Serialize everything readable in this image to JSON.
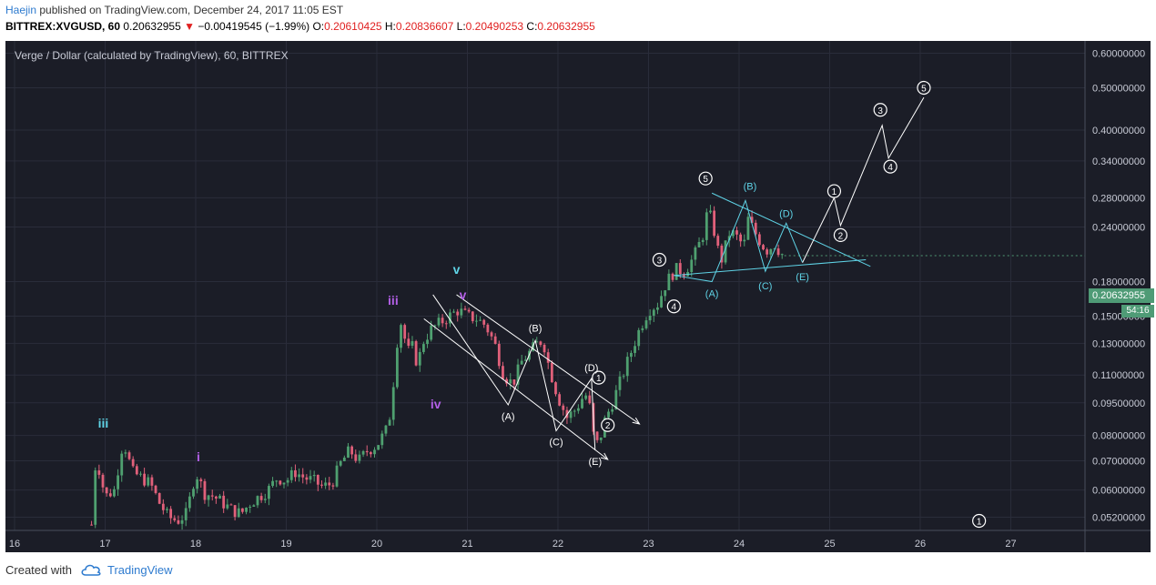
{
  "header": {
    "author": "Haejin",
    "published": " published on TradingView.com, December 24, 2017 11:05 EST",
    "symbol": "BITTREX:XVGUSD, 60",
    "last": "0.20632955",
    "change_arrow": "▼",
    "change": "−0.00419545 (−1.99%)",
    "o_label": "O:",
    "o_value": "0.20610425",
    "h_label": "H:",
    "h_value": "0.20836607",
    "l_label": "L:",
    "l_value": "0.20490253",
    "c_label": "C:",
    "c_value": "0.20632955"
  },
  "colors": {
    "background": "#1b1d27",
    "up_candle": "#4fa070",
    "down_candle": "#e0607a",
    "cyan": "#5fd3e6",
    "purple": "#b25fe6",
    "white": "#ffffff",
    "price_badge": "#4f9b76",
    "brand": "#2e7bcf"
  },
  "footer": {
    "created_with": "Created with",
    "brand": "TradingView",
    "logo_icon": "cloud-logo-icon"
  },
  "chart_data": {
    "type": "candlestick",
    "title": "Verge / Dollar (calculated by TradingView), 60, BITTREX",
    "price_scale": "log",
    "x_ticks": [
      "16",
      "17",
      "18",
      "19",
      "20",
      "21",
      "22",
      "23",
      "24",
      "25",
      "26",
      "27"
    ],
    "x_range": [
      16,
      27.92
    ],
    "y_ticks": [
      "0.60000000",
      "0.50000000",
      "0.40000000",
      "0.34000000",
      "0.28000000",
      "0.24000000",
      "0.18000000",
      "0.15000000",
      "0.13000000",
      "0.11000000",
      "0.09500000",
      "0.08000000",
      "0.07000000",
      "0.06000000",
      "0.05200000"
    ],
    "y_range": [
      0.0485,
      0.64
    ],
    "last_price": "0.20632955",
    "bar_countdown": "54:16",
    "price_path": [
      [
        16.85,
        0.05
      ],
      [
        16.9,
        0.072
      ],
      [
        17.0,
        0.058
      ],
      [
        17.1,
        0.06
      ],
      [
        17.2,
        0.078
      ],
      [
        17.3,
        0.066
      ],
      [
        17.4,
        0.064
      ],
      [
        17.5,
        0.062
      ],
      [
        17.6,
        0.056
      ],
      [
        17.7,
        0.052
      ],
      [
        17.8,
        0.051
      ],
      [
        17.9,
        0.053
      ],
      [
        18.0,
        0.066
      ],
      [
        18.1,
        0.059
      ],
      [
        18.2,
        0.058
      ],
      [
        18.3,
        0.056
      ],
      [
        18.4,
        0.054
      ],
      [
        18.5,
        0.053
      ],
      [
        18.6,
        0.056
      ],
      [
        18.7,
        0.058
      ],
      [
        18.8,
        0.06
      ],
      [
        18.9,
        0.064
      ],
      [
        19.0,
        0.063
      ],
      [
        19.1,
        0.066
      ],
      [
        19.2,
        0.064
      ],
      [
        19.3,
        0.063
      ],
      [
        19.4,
        0.061
      ],
      [
        19.5,
        0.062
      ],
      [
        19.6,
        0.069
      ],
      [
        19.7,
        0.074
      ],
      [
        19.8,
        0.07
      ],
      [
        19.9,
        0.074
      ],
      [
        20.0,
        0.076
      ],
      [
        20.1,
        0.082
      ],
      [
        20.15,
        0.09
      ],
      [
        20.2,
        0.115
      ],
      [
        20.25,
        0.15
      ],
      [
        20.3,
        0.135
      ],
      [
        20.35,
        0.125
      ],
      [
        20.4,
        0.128
      ],
      [
        20.45,
        0.115
      ],
      [
        20.5,
        0.13
      ],
      [
        20.6,
        0.14
      ],
      [
        20.7,
        0.145
      ],
      [
        20.8,
        0.15
      ],
      [
        20.9,
        0.155
      ],
      [
        21.0,
        0.15
      ],
      [
        21.1,
        0.148
      ],
      [
        21.2,
        0.143
      ],
      [
        21.3,
        0.13
      ],
      [
        21.4,
        0.11
      ],
      [
        21.5,
        0.105
      ],
      [
        21.6,
        0.118
      ],
      [
        21.7,
        0.125
      ],
      [
        21.8,
        0.132
      ],
      [
        21.85,
        0.128
      ],
      [
        21.9,
        0.115
      ],
      [
        22.0,
        0.098
      ],
      [
        22.1,
        0.088
      ],
      [
        22.2,
        0.092
      ],
      [
        22.3,
        0.1
      ],
      [
        22.35,
        0.093
      ],
      [
        22.4,
        0.078
      ],
      [
        22.45,
        0.076
      ],
      [
        22.5,
        0.085
      ],
      [
        22.6,
        0.095
      ],
      [
        22.7,
        0.108
      ],
      [
        22.8,
        0.123
      ],
      [
        22.9,
        0.14
      ],
      [
        23.0,
        0.155
      ],
      [
        23.1,
        0.16
      ],
      [
        23.2,
        0.18
      ],
      [
        23.3,
        0.192
      ],
      [
        23.4,
        0.19
      ],
      [
        23.5,
        0.205
      ],
      [
        23.6,
        0.23
      ],
      [
        23.65,
        0.26
      ],
      [
        23.7,
        0.25
      ],
      [
        23.75,
        0.22
      ],
      [
        23.8,
        0.2
      ],
      [
        23.9,
        0.235
      ],
      [
        24.0,
        0.225
      ],
      [
        24.05,
        0.215
      ],
      [
        24.1,
        0.25
      ],
      [
        24.2,
        0.228
      ],
      [
        24.3,
        0.212
      ],
      [
        24.4,
        0.22
      ],
      [
        24.45,
        0.21
      ],
      [
        24.5,
        0.206
      ]
    ],
    "overlays": {
      "white_wave": [
        {
          "label": "3",
          "x": 23.12,
          "y": 0.202,
          "style": "circle"
        },
        {
          "label": "4",
          "x": 23.28,
          "y": 0.158,
          "style": "circle"
        },
        {
          "label": "5",
          "x": 23.63,
          "y": 0.31,
          "style": "circle"
        },
        {
          "label": "1",
          "x": 22.45,
          "y": 0.1085,
          "style": "circle"
        },
        {
          "label": "2",
          "x": 22.55,
          "y": 0.0845,
          "style": "circle"
        },
        {
          "label": "(A)",
          "x": 21.45,
          "y": 0.0885,
          "style": "text"
        },
        {
          "label": "(B)",
          "x": 21.75,
          "y": 0.141,
          "style": "text"
        },
        {
          "label": "(C)",
          "x": 21.98,
          "y": 0.0775,
          "style": "text"
        },
        {
          "label": "(D)",
          "x": 22.37,
          "y": 0.1145,
          "style": "text"
        },
        {
          "label": "(E)",
          "x": 22.41,
          "y": 0.0698,
          "style": "text"
        }
      ],
      "projection": [
        {
          "label": "1",
          "x": 25.05,
          "y": 0.29,
          "style": "circle"
        },
        {
          "label": "2",
          "x": 25.12,
          "y": 0.23,
          "style": "circle"
        },
        {
          "label": "3",
          "x": 25.56,
          "y": 0.445,
          "style": "circle"
        },
        {
          "label": "4",
          "x": 25.67,
          "y": 0.33,
          "style": "circle"
        },
        {
          "label": "5",
          "x": 26.04,
          "y": 0.5,
          "style": "circle"
        }
      ],
      "cyan_triangle": [
        {
          "label": "(A)",
          "x": 23.7,
          "y": 0.169,
          "style": "text"
        },
        {
          "label": "(B)",
          "x": 24.12,
          "y": 0.298,
          "style": "text"
        },
        {
          "label": "(C)",
          "x": 24.29,
          "y": 0.176,
          "style": "text"
        },
        {
          "label": "(D)",
          "x": 24.52,
          "y": 0.258,
          "style": "text"
        },
        {
          "label": "(E)",
          "x": 24.7,
          "y": 0.185,
          "style": "text"
        }
      ],
      "degree_labels": [
        {
          "label": "iii",
          "x": 16.98,
          "y": 0.0855,
          "color": "cyan"
        },
        {
          "label": "i",
          "x": 18.03,
          "y": 0.0715,
          "color": "purple"
        },
        {
          "label": "iii",
          "x": 20.18,
          "y": 0.163,
          "color": "purple"
        },
        {
          "label": "iv",
          "x": 20.65,
          "y": 0.0945,
          "color": "purple"
        },
        {
          "label": "v",
          "x": 20.88,
          "y": 0.192,
          "color": "cyan"
        },
        {
          "label": "v",
          "x": 20.95,
          "y": 0.168,
          "color": "purple"
        }
      ],
      "corner_label": {
        "label": "1",
        "x": 26.65,
        "y": 0.051,
        "style": "circle"
      }
    }
  }
}
